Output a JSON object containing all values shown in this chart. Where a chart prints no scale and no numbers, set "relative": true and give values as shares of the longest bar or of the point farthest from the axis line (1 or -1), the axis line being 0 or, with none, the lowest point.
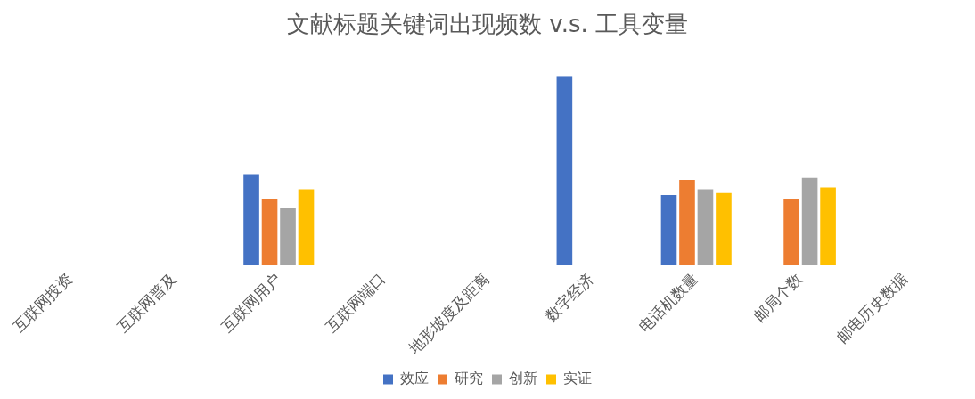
{
  "chart_data": {
    "type": "bar",
    "title": "文献标题关键词出现频数 v.s. 工具变量",
    "relative": true,
    "legend": "bottom",
    "grid": false,
    "categories": [
      "互联网投资",
      "互联网普及",
      "互联网用户",
      "互联网端口",
      "地形坡度及距离",
      "数字经济",
      "电话机数量",
      "邮局个数",
      "邮电历史数据"
    ],
    "series": [
      {
        "name": "效应",
        "color": "#4472c4",
        "values": [
          null,
          null,
          0.48,
          null,
          null,
          1,
          0.37,
          null,
          null
        ]
      },
      {
        "name": "研究",
        "color": "#ed7d31",
        "values": [
          null,
          null,
          0.35,
          null,
          null,
          null,
          0.45,
          0.35,
          null
        ]
      },
      {
        "name": "创新",
        "color": "#a5a5a5",
        "values": [
          null,
          null,
          0.3,
          null,
          null,
          null,
          0.4,
          0.46,
          null
        ]
      },
      {
        "name": "实证",
        "color": "#ffc000",
        "values": [
          null,
          null,
          0.4,
          null,
          null,
          null,
          0.38,
          0.41,
          null
        ]
      }
    ]
  }
}
